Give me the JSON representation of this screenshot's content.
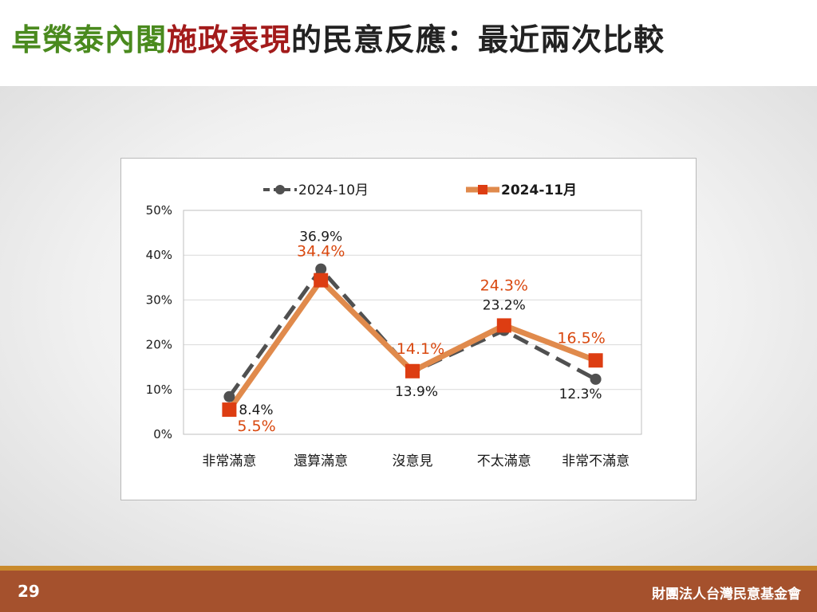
{
  "title": {
    "part1": "卓榮泰內閣",
    "part2": "施政表現",
    "part3": "的民意反應：最近兩次比較",
    "colors": {
      "part1": "#4a8a1e",
      "part2": "#a31b1b",
      "part3": "#222222"
    }
  },
  "chart_data": {
    "type": "line",
    "categories": [
      "非常滿意",
      "還算滿意",
      "沒意見",
      "不太滿意",
      "非常不滿意"
    ],
    "series": [
      {
        "name": "2024-10月",
        "values": [
          8.4,
          36.9,
          13.9,
          23.2,
          12.3
        ],
        "labels": [
          "8.4%",
          "36.9%",
          "13.9%",
          "23.2%",
          "12.3%"
        ],
        "color": "#505050",
        "label_color": "#1a1a1a",
        "marker": "circle",
        "dashed": true
      },
      {
        "name": "2024-11月",
        "values": [
          5.5,
          34.4,
          14.1,
          24.3,
          16.5
        ],
        "labels": [
          "5.5%",
          "34.4%",
          "14.1%",
          "24.3%",
          "16.5%"
        ],
        "color": "#e08a4c",
        "marker_color": "#dd3d12",
        "label_color": "#d9480f",
        "marker": "square",
        "dashed": false
      }
    ],
    "ylim": [
      0,
      50
    ],
    "yticks": [
      0,
      10,
      20,
      30,
      40,
      50
    ],
    "ytick_labels": [
      "0%",
      "10%",
      "20%",
      "30%",
      "40%",
      "50%"
    ],
    "grid": true,
    "legend_position": "top"
  },
  "footer": {
    "page_number": "29",
    "organization": "財團法人台灣民意基金會"
  }
}
